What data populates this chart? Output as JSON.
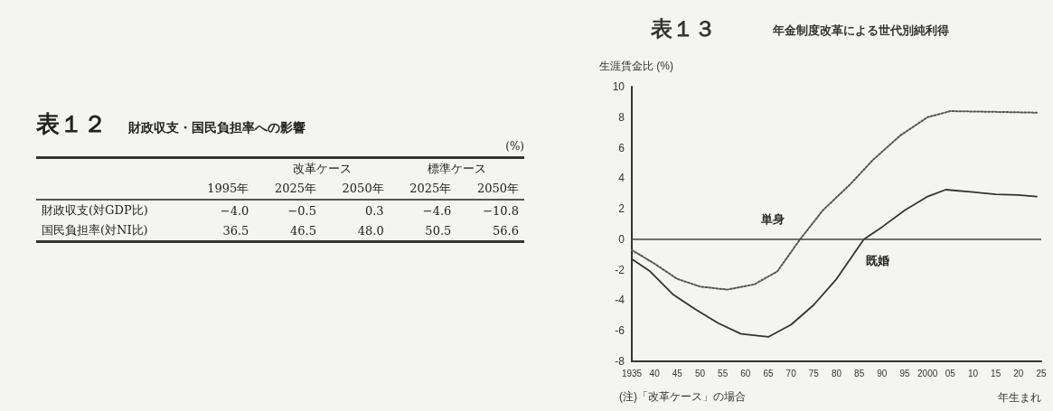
{
  "chart_data": [
    {
      "type": "other",
      "title": "表１２",
      "subtitle": "財政収支・国民負担率への影響",
      "categories": [
        "1995年",
        "2025年",
        "2050年",
        "2025年",
        "2050年"
      ],
      "y_categories": [
        "財政収支(対GDP比)",
        "国民負担率(対NI比)"
      ],
      "cell_labels": [
        [
          "−4.0",
          "−0.5",
          "0.3",
          "−4.6",
          "−10.8"
        ],
        [
          "36.5",
          "46.5",
          "48.0",
          "50.5",
          "56.6"
        ]
      ],
      "annotations": [
        "(%)",
        "改革ケース",
        "標準ケース"
      ]
    },
    {
      "type": "line",
      "title": "表１３",
      "subtitle": "年金制度改革による世代別純利得",
      "ylabel": "生涯賃金比 (%)",
      "xlabel": "年生まれ",
      "series": [
        {
          "name": "単身",
          "color": "#555555",
          "line_style": "dotted",
          "x": [
            1935,
            1940,
            1945,
            1950,
            1956,
            1962,
            1967,
            1972,
            1977,
            1983,
            1988,
            1994,
            2000,
            2005,
            2015,
            2024
          ],
          "values": [
            -0.7,
            -1.6,
            -2.6,
            -3.1,
            -3.3,
            -2.95,
            -2.1,
            0,
            1.9,
            3.6,
            5.2,
            6.8,
            8.0,
            8.4,
            8.35,
            8.3
          ]
        },
        {
          "name": "既婚",
          "color": "#333333",
          "line_style": "solid",
          "x": [
            1935,
            1939,
            1944,
            1949,
            1954,
            1959,
            1965,
            1970,
            1975,
            1980,
            1986,
            1990,
            1995,
            2000,
            2004,
            2010,
            2015,
            2020,
            2024
          ],
          "values": [
            -1.3,
            -2.1,
            -3.6,
            -4.6,
            -5.5,
            -6.2,
            -6.4,
            -5.6,
            -4.3,
            -2.6,
            0,
            0.8,
            1.9,
            2.8,
            3.25,
            3.1,
            2.95,
            2.9,
            2.8
          ]
        }
      ],
      "xlim": [
        1935,
        2025
      ],
      "xticks": [
        1935,
        {
          "value": 1940,
          "label": "40"
        },
        {
          "value": 1945,
          "label": "45"
        },
        {
          "value": 1950,
          "label": "50"
        },
        {
          "value": 1955,
          "label": "55"
        },
        {
          "value": 1960,
          "label": "60"
        },
        {
          "value": 1965,
          "label": "65"
        },
        {
          "value": 1970,
          "label": "70"
        },
        {
          "value": 1975,
          "label": "75"
        },
        {
          "value": 1980,
          "label": "80"
        },
        {
          "value": 1985,
          "label": "85"
        },
        {
          "value": 1990,
          "label": "90"
        },
        {
          "value": 1995,
          "label": "95"
        },
        2000,
        {
          "value": 2005,
          "label": "05"
        },
        {
          "value": 2010,
          "label": "10"
        },
        {
          "value": 2015,
          "label": "15"
        },
        {
          "value": 2020,
          "label": "20"
        },
        {
          "value": 2025,
          "label": "25"
        }
      ],
      "ylim": [
        -8,
        10
      ],
      "yticks": [
        -8,
        -6,
        -4,
        -2,
        0,
        2,
        4,
        6,
        8,
        10
      ],
      "grid": false,
      "legend": false,
      "ref_lines": [
        {
          "axis": "y",
          "value": 0,
          "color": "#444444"
        }
      ],
      "annotations": [
        "(注)「改革ケース」の場合"
      ]
    }
  ]
}
